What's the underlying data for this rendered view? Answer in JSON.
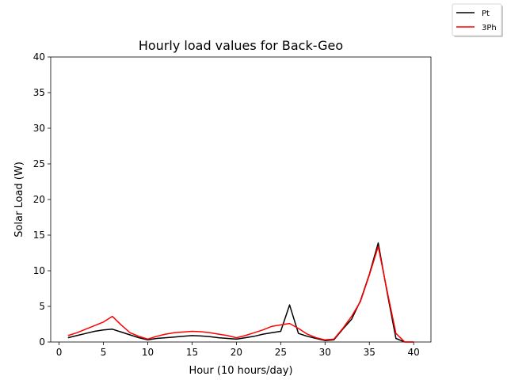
{
  "chart_data": {
    "type": "line",
    "title": "Hourly load values for Back-Geo",
    "xlabel": "Hour (10 hours/day)",
    "ylabel": "Solar Load (W)",
    "xlim": [
      -0.95,
      41.95
    ],
    "ylim": [
      0,
      40
    ],
    "xticks": [
      0,
      5,
      10,
      15,
      20,
      25,
      30,
      35,
      40
    ],
    "yticks": [
      0,
      5,
      10,
      15,
      20,
      25,
      30,
      35,
      40
    ],
    "grid": false,
    "legend_position": "top-right",
    "x": [
      1,
      2,
      3,
      4,
      5,
      6,
      7,
      8,
      9,
      10,
      11,
      12,
      13,
      14,
      15,
      16,
      17,
      18,
      19,
      20,
      21,
      22,
      23,
      24,
      25,
      26,
      27,
      28,
      29,
      30,
      31,
      32,
      33,
      34,
      35,
      36,
      37,
      38,
      39,
      40
    ],
    "series": [
      {
        "name": "Pt",
        "color": "#000000",
        "values": [
          0.6,
          0.9,
          1.2,
          1.5,
          1.7,
          1.8,
          1.4,
          1.0,
          0.6,
          0.3,
          0.5,
          0.6,
          0.7,
          0.8,
          0.9,
          0.85,
          0.75,
          0.6,
          0.5,
          0.4,
          0.6,
          0.8,
          1.1,
          1.3,
          1.5,
          5.2,
          1.2,
          0.8,
          0.5,
          0.2,
          0.3,
          1.8,
          3.2,
          5.8,
          9.5,
          13.9,
          7.0,
          0.5,
          0.0,
          0.0
        ]
      },
      {
        "name": "3Ph",
        "color": "#ff0000",
        "values": [
          0.9,
          1.3,
          1.8,
          2.3,
          2.8,
          3.6,
          2.4,
          1.3,
          0.8,
          0.4,
          0.8,
          1.1,
          1.3,
          1.4,
          1.5,
          1.45,
          1.3,
          1.1,
          0.9,
          0.6,
          0.9,
          1.3,
          1.7,
          2.2,
          2.4,
          2.6,
          1.9,
          1.1,
          0.6,
          0.3,
          0.4,
          1.9,
          3.6,
          5.7,
          9.4,
          13.4,
          7.2,
          1.2,
          0.0,
          0.0
        ]
      }
    ]
  }
}
